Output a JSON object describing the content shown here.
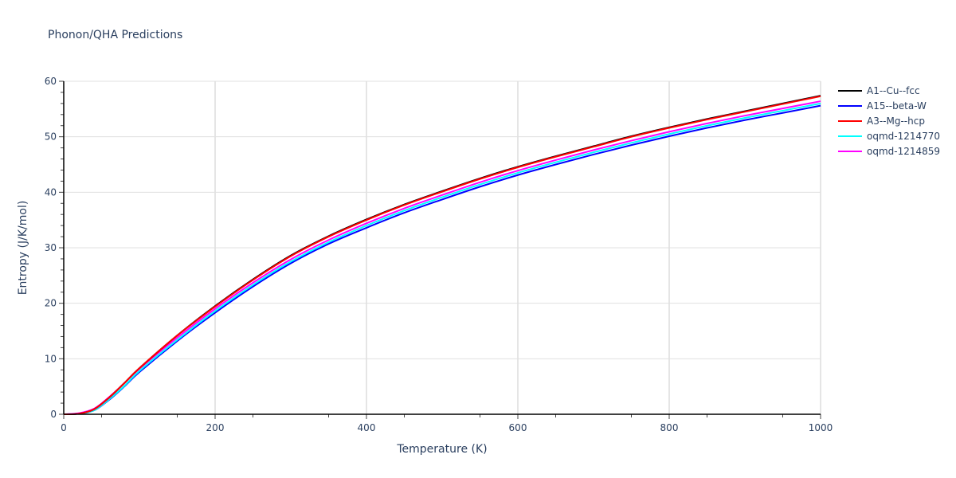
{
  "chart_data": {
    "type": "line",
    "title": "Phonon/QHA Predictions",
    "xlabel": "Temperature (K)",
    "ylabel": "Entropy (J/K/mol)",
    "xlim": [
      0,
      1000
    ],
    "ylim": [
      0,
      60
    ],
    "xticks": [
      0,
      200,
      400,
      600,
      800,
      1000
    ],
    "yticks": [
      0,
      10,
      20,
      30,
      40,
      50,
      60
    ],
    "grid": true,
    "legend_position": "right",
    "x": [
      0,
      20,
      40,
      60,
      80,
      100,
      150,
      200,
      250,
      300,
      350,
      400,
      450,
      500,
      550,
      600,
      650,
      700,
      750,
      800,
      850,
      900,
      950,
      1000
    ],
    "series": [
      {
        "name": "A1--Cu--fcc",
        "color": "#000000",
        "values": [
          0,
          0.1,
          0.9,
          3.0,
          5.6,
          8.3,
          14.2,
          19.5,
          24.3,
          28.6,
          32.1,
          35.1,
          37.8,
          40.2,
          42.5,
          44.6,
          46.5,
          48.3,
          50.1,
          51.7,
          53.2,
          54.6,
          56.0,
          57.4
        ]
      },
      {
        "name": "A15--beta-W",
        "color": "#0000ff",
        "values": [
          0,
          0.1,
          0.7,
          2.6,
          5.0,
          7.6,
          13.2,
          18.3,
          23.0,
          27.2,
          30.7,
          33.6,
          36.3,
          38.7,
          41.0,
          43.1,
          45.0,
          46.8,
          48.5,
          50.1,
          51.6,
          53.0,
          54.3,
          55.6
        ]
      },
      {
        "name": "A3--Mg--hcp",
        "color": "#ff0000",
        "values": [
          0,
          0.1,
          0.9,
          3.0,
          5.6,
          8.3,
          14.2,
          19.4,
          24.2,
          28.5,
          32.0,
          35.0,
          37.7,
          40.1,
          42.4,
          44.5,
          46.4,
          48.2,
          50.0,
          51.6,
          53.1,
          54.5,
          55.9,
          57.3
        ]
      },
      {
        "name": "oqmd-1214770",
        "color": "#00ffff",
        "values": [
          0,
          0.1,
          0.7,
          2.7,
          5.1,
          7.8,
          13.4,
          18.6,
          23.3,
          27.5,
          31.0,
          34.0,
          36.7,
          39.1,
          41.4,
          43.5,
          45.4,
          47.2,
          48.9,
          50.5,
          52.0,
          53.4,
          54.7,
          56.0
        ]
      },
      {
        "name": "oqmd-1214859",
        "color": "#ff00ff",
        "values": [
          0,
          0.2,
          1.0,
          3.1,
          5.6,
          8.2,
          13.8,
          19.0,
          23.7,
          27.9,
          31.4,
          34.4,
          37.1,
          39.5,
          41.8,
          43.9,
          45.8,
          47.6,
          49.3,
          50.9,
          52.4,
          53.8,
          55.1,
          56.4
        ]
      }
    ]
  }
}
